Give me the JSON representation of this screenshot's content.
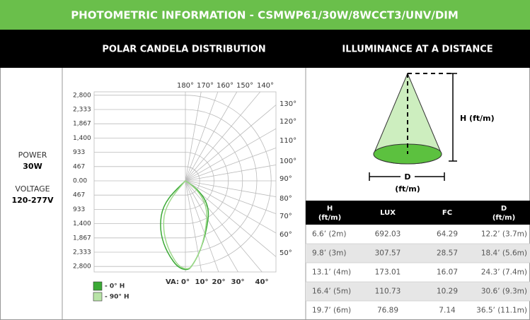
{
  "header": {
    "title": "PHOTOMETRIC INFORMATION - CSMWP61/30W/8WCCT3/UNV/DIM"
  },
  "sections": [
    "POLAR CANDELA DISTRIBUTION",
    "ILLUMINANCE AT A DISTANCE"
  ],
  "specs": [
    {
      "label": "POWER",
      "value": "30W"
    },
    {
      "label": "VOLTAGE",
      "value": "120-277V"
    }
  ],
  "polar": {
    "radial_labels": [
      "2,800",
      "2,333",
      "1,867",
      "1,400",
      "933",
      "467",
      "0.00",
      "467",
      "933",
      "1,400",
      "1,867",
      "2,333",
      "2,800"
    ],
    "top_angles": [
      "180°",
      "170°",
      "160°",
      "150°",
      "140°"
    ],
    "right_angles": [
      "130°",
      "120°",
      "110°",
      "100°",
      "90°",
      "80°",
      "70°",
      "60°",
      "50°"
    ],
    "bottom_label": "VA:",
    "bottom_angles": [
      "0°",
      "10°",
      "20°",
      "30°",
      "40°"
    ],
    "legend": [
      "- 0° H",
      "- 90° H"
    ]
  },
  "diagram": {
    "height_label": "H (ft/m)",
    "diameter_label": "D",
    "diameter_unit": "(ft/m)"
  },
  "table": {
    "columns": [
      {
        "label": "H",
        "unit": "(ft/m)"
      },
      {
        "label": "LUX"
      },
      {
        "label": "FC"
      },
      {
        "label": "D",
        "unit": "(ft/m)"
      }
    ],
    "rows": [
      [
        "6.6’ (2m)",
        "692.03",
        "64.29",
        "12.2’ (3.7m)"
      ],
      [
        "9.8’ (3m)",
        "307.57",
        "28.57",
        "18.4’ (5.6m)"
      ],
      [
        "13.1’ (4m)",
        "173.01",
        "16.07",
        "24.3’ (7.4m)"
      ],
      [
        "16.4’ (5m)",
        "110.73",
        "10.29",
        "30.6’ (9.3m)"
      ],
      [
        "19.7’ (6m)",
        "76.89",
        "7.14",
        "36.5’ (11.1m)"
      ]
    ]
  }
}
